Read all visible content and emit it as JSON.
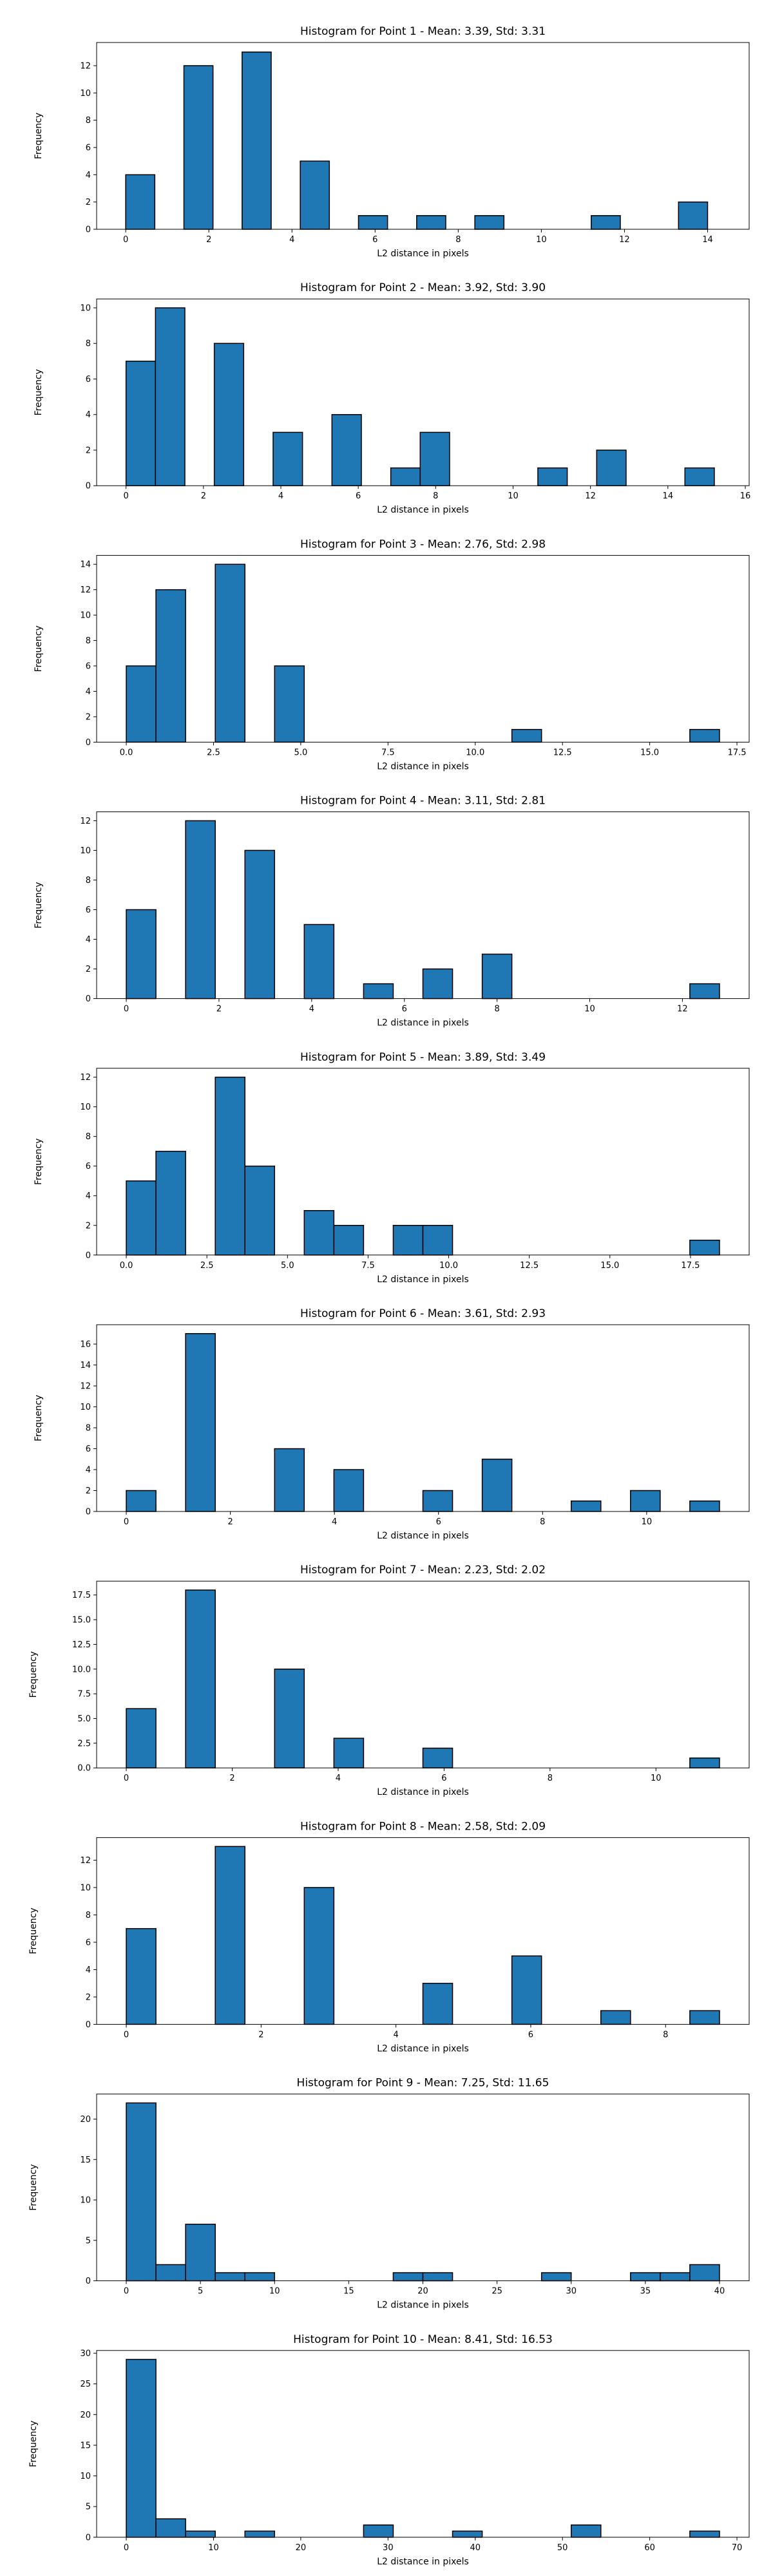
{
  "chart_data": [
    {
      "type": "bar",
      "title": "Histogram for Point 1 - Mean: 3.39, Std: 3.31",
      "xlabel": "L2 distance in pixels",
      "ylabel": "Frequency",
      "xlim": [
        -0.7,
        15
      ],
      "ylim": [
        0,
        13.7
      ],
      "xticks": [
        0,
        2,
        4,
        6,
        8,
        10,
        12,
        14
      ],
      "xtick_labels": [
        "0",
        "2",
        "4",
        "6",
        "8",
        "10",
        "12",
        "14"
      ],
      "yticks": [
        0,
        2,
        4,
        6,
        8,
        10,
        12
      ],
      "bin_edges": [
        0,
        0.7,
        1.4,
        2.1,
        2.8,
        3.5,
        4.2,
        4.9,
        5.6,
        6.3,
        7.0,
        7.7,
        8.4,
        9.1,
        9.8,
        10.5,
        11.2,
        11.9,
        12.6,
        13.3,
        14.0
      ],
      "counts": [
        4,
        0,
        12,
        0,
        13,
        0,
        5,
        0,
        1,
        0,
        1,
        0,
        1,
        0,
        0,
        0,
        1,
        0,
        0,
        2
      ]
    },
    {
      "type": "bar",
      "title": "Histogram for Point 2 - Mean: 3.92, Std: 3.90",
      "xlabel": "L2 distance in pixels",
      "ylabel": "Frequency",
      "xlim": [
        -0.76,
        16.1
      ],
      "ylim": [
        0,
        10.5
      ],
      "xticks": [
        0,
        2,
        4,
        6,
        8,
        10,
        12,
        14,
        16
      ],
      "xtick_labels": [
        "0",
        "2",
        "4",
        "6",
        "8",
        "10",
        "12",
        "14",
        "16"
      ],
      "yticks": [
        0,
        2,
        4,
        6,
        8,
        10
      ],
      "bin_edges": [
        0,
        0.76,
        1.52,
        2.28,
        3.04,
        3.8,
        4.56,
        5.32,
        6.08,
        6.84,
        7.6,
        8.36,
        9.12,
        9.88,
        10.64,
        11.4,
        12.16,
        12.92,
        13.68,
        14.44,
        15.2
      ],
      "counts": [
        7,
        10,
        0,
        8,
        0,
        3,
        0,
        4,
        0,
        1,
        3,
        0,
        0,
        0,
        1,
        0,
        2,
        0,
        0,
        1
      ]
    },
    {
      "type": "bar",
      "title": "Histogram for Point 3 - Mean: 2.76, Std: 2.98",
      "xlabel": "L2 distance in pixels",
      "ylabel": "Frequency",
      "xlim": [
        -0.85,
        17.85
      ],
      "ylim": [
        0,
        14.7
      ],
      "xticks": [
        0,
        2.5,
        5,
        7.5,
        10,
        12.5,
        15,
        17.5
      ],
      "xtick_labels": [
        "0.0",
        "2.5",
        "5.0",
        "7.5",
        "10.0",
        "12.5",
        "15.0",
        "17.5"
      ],
      "yticks": [
        0,
        2,
        4,
        6,
        8,
        10,
        12,
        14
      ],
      "bin_edges": [
        0,
        0.85,
        1.7,
        2.55,
        3.4,
        4.25,
        5.1,
        5.95,
        6.8,
        7.65,
        8.5,
        9.35,
        10.2,
        11.05,
        11.9,
        12.75,
        13.6,
        14.45,
        15.3,
        16.15,
        17.0
      ],
      "counts": [
        6,
        12,
        0,
        14,
        0,
        6,
        0,
        0,
        0,
        0,
        0,
        0,
        0,
        1,
        0,
        0,
        0,
        0,
        0,
        1
      ]
    },
    {
      "type": "bar",
      "title": "Histogram for Point 4 - Mean: 3.11, Std: 2.81",
      "xlabel": "L2 distance in pixels",
      "ylabel": "Frequency",
      "xlim": [
        -0.64,
        13.44
      ],
      "ylim": [
        0,
        12.6
      ],
      "xticks": [
        0,
        2,
        4,
        6,
        8,
        10,
        12
      ],
      "xtick_labels": [
        "0",
        "2",
        "4",
        "6",
        "8",
        "10",
        "12"
      ],
      "yticks": [
        0,
        2,
        4,
        6,
        8,
        10,
        12
      ],
      "bin_edges": [
        0,
        0.64,
        1.28,
        1.92,
        2.56,
        3.2,
        3.84,
        4.48,
        5.12,
        5.76,
        6.4,
        7.04,
        7.68,
        8.32,
        8.96,
        9.6,
        10.24,
        10.88,
        11.52,
        12.16,
        12.8
      ],
      "counts": [
        6,
        0,
        12,
        0,
        10,
        0,
        5,
        0,
        1,
        0,
        2,
        0,
        3,
        0,
        0,
        0,
        0,
        0,
        0,
        1
      ]
    },
    {
      "type": "bar",
      "title": "Histogram for Point 5 - Mean: 3.89, Std: 3.49",
      "xlabel": "L2 distance in pixels",
      "ylabel": "Frequency",
      "xlim": [
        -0.92,
        19.32
      ],
      "ylim": [
        0,
        12.6
      ],
      "xticks": [
        0,
        2.5,
        5,
        7.5,
        10,
        12.5,
        15,
        17.5
      ],
      "xtick_labels": [
        "0.0",
        "2.5",
        "5.0",
        "7.5",
        "10.0",
        "12.5",
        "15.0",
        "17.5"
      ],
      "yticks": [
        0,
        2,
        4,
        6,
        8,
        10,
        12
      ],
      "bin_edges": [
        0,
        0.92,
        1.84,
        2.76,
        3.68,
        4.6,
        5.52,
        6.44,
        7.36,
        8.28,
        9.2,
        10.12,
        11.04,
        11.96,
        12.88,
        13.8,
        14.72,
        15.64,
        16.56,
        17.48,
        18.4
      ],
      "counts": [
        5,
        7,
        0,
        12,
        6,
        0,
        3,
        2,
        0,
        2,
        2,
        0,
        0,
        0,
        0,
        0,
        0,
        0,
        0,
        1
      ]
    },
    {
      "type": "bar",
      "title": "Histogram for Point 6 - Mean: 3.61, Std: 2.93",
      "xlabel": "L2 distance in pixels",
      "ylabel": "Frequency",
      "xlim": [
        -0.57,
        11.97
      ],
      "ylim": [
        0,
        17.85
      ],
      "xticks": [
        0,
        2,
        4,
        6,
        8,
        10
      ],
      "xtick_labels": [
        "0",
        "2",
        "4",
        "6",
        "8",
        "10"
      ],
      "yticks": [
        0,
        2,
        4,
        6,
        8,
        10,
        12,
        14,
        16
      ],
      "bin_edges": [
        0,
        0.57,
        1.14,
        1.71,
        2.28,
        2.85,
        3.42,
        3.99,
        4.56,
        5.13,
        5.7,
        6.27,
        6.84,
        7.41,
        7.98,
        8.55,
        9.12,
        9.69,
        10.26,
        10.83,
        11.4
      ],
      "counts": [
        2,
        0,
        17,
        0,
        0,
        6,
        0,
        4,
        0,
        0,
        2,
        0,
        5,
        0,
        0,
        1,
        0,
        2,
        0,
        1
      ]
    },
    {
      "type": "bar",
      "title": "Histogram for Point 7 - Mean: 2.23, Std: 2.02",
      "xlabel": "L2 distance in pixels",
      "ylabel": "Frequency",
      "xlim": [
        -0.56,
        11.76
      ],
      "ylim": [
        0,
        18.9
      ],
      "xticks": [
        0,
        2,
        4,
        6,
        8,
        10
      ],
      "xtick_labels": [
        "0",
        "2",
        "4",
        "6",
        "8",
        "10"
      ],
      "yticks": [
        0,
        2.5,
        5,
        7.5,
        10,
        12.5,
        15,
        17.5
      ],
      "ytick_labels": [
        "0.0",
        "2.5",
        "5.0",
        "7.5",
        "10.0",
        "12.5",
        "15.0",
        "17.5"
      ],
      "bin_edges": [
        0,
        0.56,
        1.12,
        1.68,
        2.24,
        2.8,
        3.36,
        3.92,
        4.48,
        5.04,
        5.6,
        6.16,
        6.72,
        7.28,
        7.84,
        8.4,
        8.96,
        9.52,
        10.08,
        10.64,
        11.2
      ],
      "counts": [
        6,
        0,
        18,
        0,
        0,
        10,
        0,
        3,
        0,
        0,
        2,
        0,
        0,
        0,
        0,
        0,
        0,
        0,
        0,
        1
      ]
    },
    {
      "type": "bar",
      "title": "Histogram for Point 8 - Mean: 2.58, Std: 2.09",
      "xlabel": "L2 distance in pixels",
      "ylabel": "Frequency",
      "xlim": [
        -0.44,
        9.24
      ],
      "ylim": [
        0,
        13.65
      ],
      "xticks": [
        0,
        2,
        4,
        6,
        8
      ],
      "xtick_labels": [
        "0",
        "2",
        "4",
        "6",
        "8"
      ],
      "yticks": [
        0,
        2,
        4,
        6,
        8,
        10,
        12
      ],
      "bin_edges": [
        0,
        0.44,
        0.88,
        1.32,
        1.76,
        2.2,
        2.64,
        3.08,
        3.52,
        3.96,
        4.4,
        4.84,
        5.28,
        5.72,
        6.16,
        6.6,
        7.04,
        7.48,
        7.92,
        8.36,
        8.8
      ],
      "counts": [
        7,
        0,
        0,
        13,
        0,
        0,
        10,
        0,
        0,
        0,
        3,
        0,
        0,
        5,
        0,
        0,
        1,
        0,
        0,
        1
      ]
    },
    {
      "type": "bar",
      "title": "Histogram for Point 9 - Mean: 7.25, Std: 11.65",
      "xlabel": "L2 distance in pixels",
      "ylabel": "Frequency",
      "xlim": [
        -2,
        42
      ],
      "ylim": [
        0,
        23.1
      ],
      "xticks": [
        0,
        5,
        10,
        15,
        20,
        25,
        30,
        35,
        40
      ],
      "xtick_labels": [
        "0",
        "5",
        "10",
        "15",
        "20",
        "25",
        "30",
        "35",
        "40"
      ],
      "yticks": [
        0,
        5,
        10,
        15,
        20
      ],
      "bin_edges": [
        0,
        2,
        4,
        6,
        8,
        10,
        12,
        14,
        16,
        18,
        20,
        22,
        24,
        26,
        28,
        30,
        32,
        34,
        36,
        38,
        40
      ],
      "counts": [
        22,
        2,
        7,
        1,
        1,
        0,
        0,
        0,
        0,
        1,
        1,
        0,
        0,
        0,
        1,
        0,
        0,
        1,
        1,
        2
      ]
    },
    {
      "type": "bar",
      "title": "Histogram for Point 10 - Mean: 8.41, Std: 16.53",
      "xlabel": "L2 distance in pixels",
      "ylabel": "Frequency",
      "xlim": [
        -3.4,
        71.4
      ],
      "ylim": [
        0,
        30.45
      ],
      "xticks": [
        0,
        10,
        20,
        30,
        40,
        50,
        60,
        70
      ],
      "xtick_labels": [
        "0",
        "10",
        "20",
        "30",
        "40",
        "50",
        "60",
        "70"
      ],
      "yticks": [
        0,
        5,
        10,
        15,
        20,
        25,
        30
      ],
      "bin_edges": [
        0,
        3.4,
        6.8,
        10.2,
        13.6,
        17.0,
        20.4,
        23.8,
        27.2,
        30.6,
        34.0,
        37.4,
        40.8,
        44.2,
        47.6,
        51.0,
        54.4,
        57.8,
        61.2,
        64.6,
        68.0
      ],
      "counts": [
        29,
        3,
        1,
        0,
        1,
        0,
        0,
        0,
        2,
        0,
        0,
        1,
        0,
        0,
        0,
        2,
        0,
        0,
        0,
        1
      ]
    }
  ]
}
